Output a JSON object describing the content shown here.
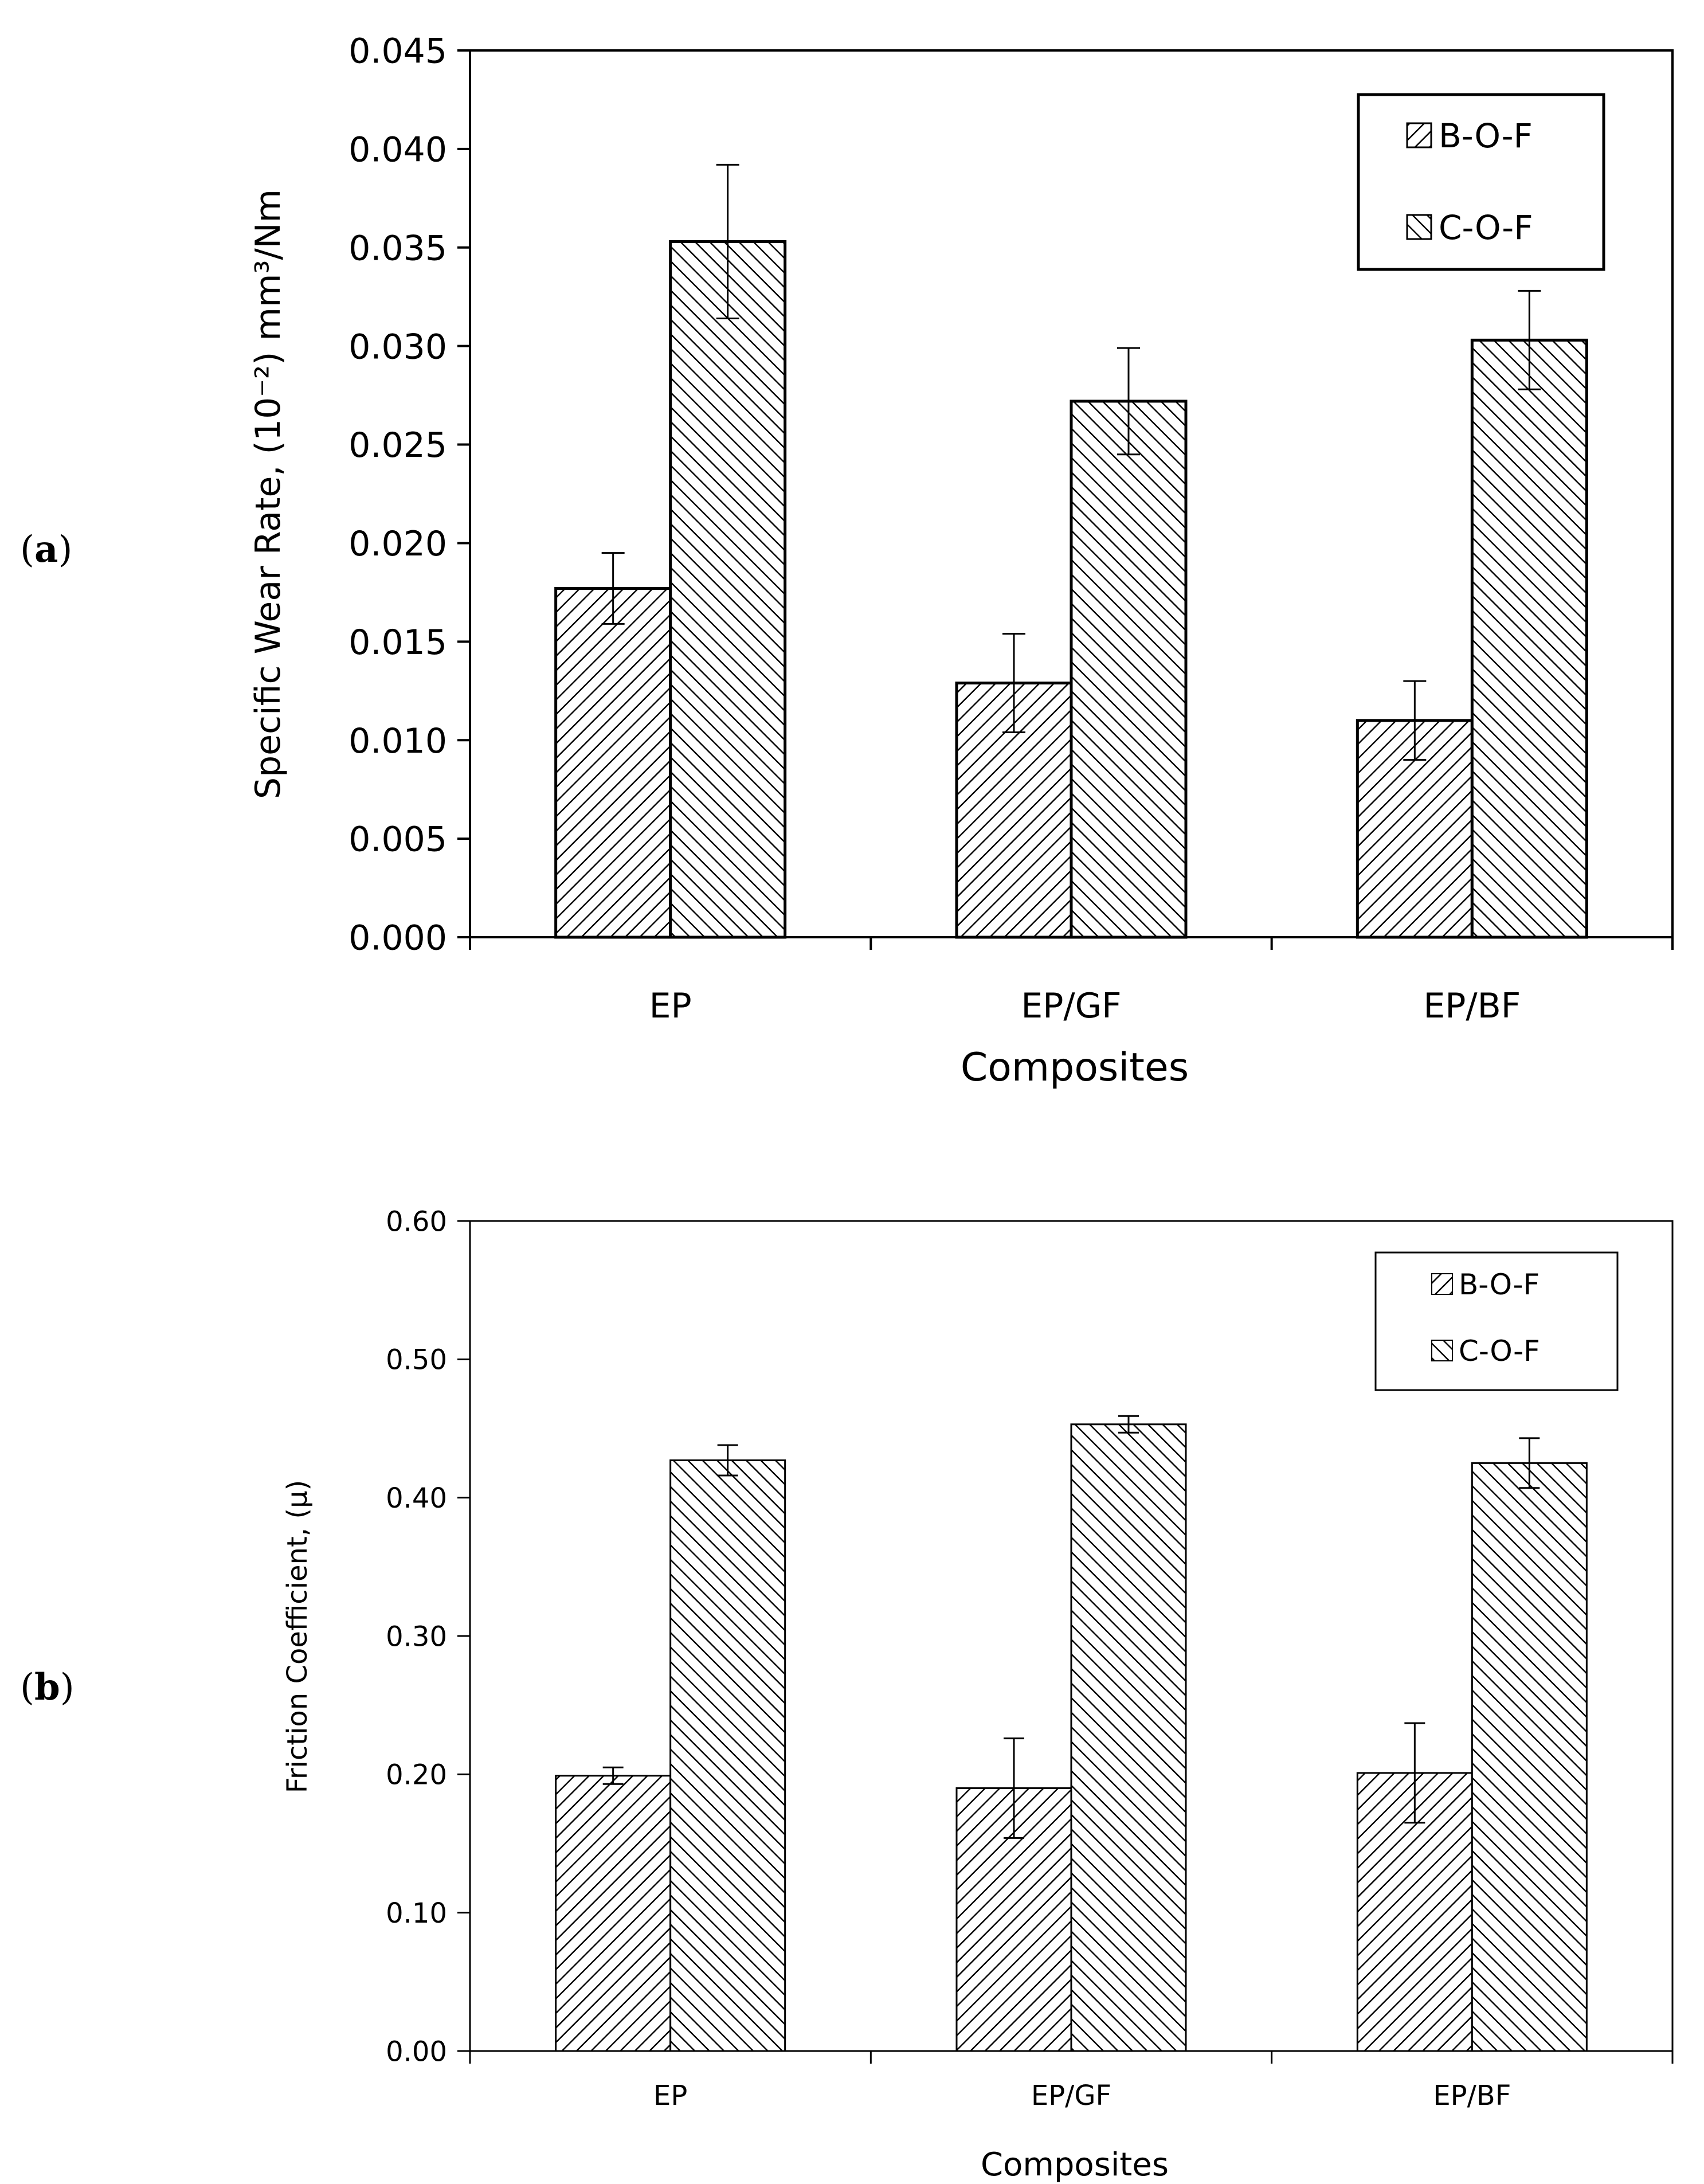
{
  "panels": [
    {
      "panel_label": "(a)",
      "panel_label_bold": "a",
      "legend": [
        "B-O-F",
        "C-O-F"
      ],
      "chart_data": {
        "type": "bar",
        "categories": [
          "EP",
          "EP/GF",
          "EP/BF"
        ],
        "series": [
          {
            "name": "B-O-F",
            "values": [
              0.0177,
              0.0129,
              0.011
            ],
            "errors": [
              0.0018,
              0.0025,
              0.002
            ]
          },
          {
            "name": "C-O-F",
            "values": [
              0.0353,
              0.0272,
              0.0303
            ],
            "errors": [
              0.0039,
              0.0027,
              0.0025
            ]
          }
        ],
        "title": "",
        "xlabel": "Composites",
        "ylabel": "Specific Wear Rate, (10⁻²) mm³/Nm",
        "ylim": [
          0,
          0.045
        ],
        "yticks": [
          "0.000",
          "0.005",
          "0.010",
          "0.015",
          "0.020",
          "0.025",
          "0.030",
          "0.035",
          "0.040",
          "0.045"
        ]
      }
    },
    {
      "panel_label": "(b)",
      "panel_label_bold": "b",
      "legend": [
        "B-O-F",
        "C-O-F"
      ],
      "chart_data": {
        "type": "bar",
        "categories": [
          "EP",
          "EP/GF",
          "EP/BF"
        ],
        "series": [
          {
            "name": "B-O-F",
            "values": [
              0.199,
              0.19,
              0.201
            ],
            "errors": [
              0.006,
              0.036,
              0.036
            ]
          },
          {
            "name": "C-O-F",
            "values": [
              0.427,
              0.453,
              0.425
            ],
            "errors": [
              0.011,
              0.006,
              0.018
            ]
          }
        ],
        "title": "",
        "xlabel": "Composites",
        "ylabel": "Friction Coefficient, (µ)",
        "ylim": [
          0,
          0.6
        ],
        "yticks": [
          "0.00",
          "0.10",
          "0.20",
          "0.30",
          "0.40",
          "0.50",
          "0.60"
        ]
      }
    }
  ]
}
